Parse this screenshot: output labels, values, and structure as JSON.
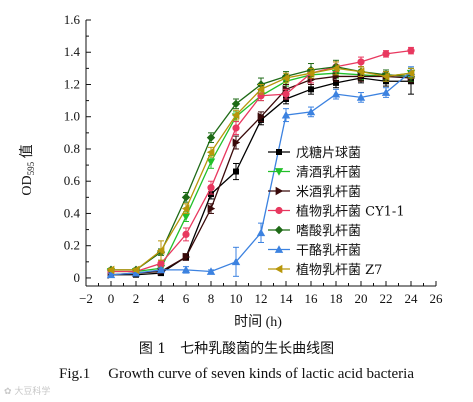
{
  "chart_data": {
    "type": "line",
    "title": "",
    "xlabel": "时间 (h)",
    "ylabel_main": "OD",
    "ylabel_sub": "595",
    "ylabel_suffix": " 值",
    "xlim": [
      -2,
      26
    ],
    "ylim": [
      -0.05,
      1.6
    ],
    "xticks": [
      -2,
      0,
      2,
      4,
      6,
      8,
      10,
      12,
      14,
      16,
      18,
      20,
      22,
      24,
      26
    ],
    "yticks": [
      0,
      0.2,
      0.4,
      0.6,
      0.8,
      1.0,
      1.2,
      1.4,
      1.6
    ],
    "ytick_labels": [
      "0",
      "0.2",
      "0.4",
      "0.6",
      "0.8",
      "1.0",
      "1.2",
      "1.4",
      "1.6"
    ],
    "grid": false,
    "legend_position": "right",
    "x": [
      0,
      2,
      4,
      6,
      8,
      10,
      12,
      14,
      16,
      18,
      20,
      22,
      24
    ],
    "series": [
      {
        "name": "戊糖片球菌",
        "color": "#000000",
        "marker": "square",
        "values": [
          0.02,
          0.02,
          0.03,
          0.13,
          0.52,
          0.66,
          0.98,
          1.11,
          1.17,
          1.21,
          1.24,
          1.22,
          1.22
        ],
        "errors": [
          0.01,
          0.01,
          0.01,
          0.02,
          0.03,
          0.05,
          0.03,
          0.03,
          0.03,
          0.03,
          0.03,
          0.03,
          0.08
        ]
      },
      {
        "name": "清酒乳杆菌",
        "color": "#22c02a",
        "marker": "triangle-down",
        "values": [
          0.04,
          0.04,
          0.06,
          0.38,
          0.72,
          1.0,
          1.13,
          1.22,
          1.26,
          1.27,
          1.26,
          1.25,
          1.27
        ],
        "errors": [
          0.01,
          0.01,
          0.02,
          0.03,
          0.04,
          0.03,
          0.03,
          0.03,
          0.03,
          0.03,
          0.03,
          0.03,
          0.03
        ]
      },
      {
        "name": "米酒乳杆菌",
        "color": "#3a0a0a",
        "marker": "triangle-right",
        "values": [
          0.02,
          0.03,
          0.04,
          0.13,
          0.43,
          0.84,
          1.0,
          1.17,
          1.23,
          1.25,
          1.25,
          1.25,
          1.24
        ],
        "errors": [
          0.01,
          0.01,
          0.01,
          0.02,
          0.03,
          0.04,
          0.03,
          0.03,
          0.03,
          0.03,
          0.03,
          0.03,
          0.03
        ]
      },
      {
        "name": "植物乳杆菌 CY1-1",
        "color": "#e8385f",
        "marker": "circle",
        "values": [
          0.04,
          0.04,
          0.09,
          0.27,
          0.56,
          0.93,
          1.13,
          1.14,
          1.27,
          1.31,
          1.34,
          1.39,
          1.41
        ],
        "errors": [
          0.01,
          0.01,
          0.02,
          0.04,
          0.04,
          0.04,
          0.03,
          0.03,
          0.06,
          0.03,
          0.03,
          0.02,
          0.02
        ]
      },
      {
        "name": "嗜酸乳杆菌",
        "color": "#1e6a16",
        "marker": "diamond",
        "values": [
          0.05,
          0.05,
          0.16,
          0.5,
          0.87,
          1.08,
          1.2,
          1.25,
          1.29,
          1.31,
          1.28,
          1.26,
          1.25
        ],
        "errors": [
          0.01,
          0.01,
          0.02,
          0.03,
          0.03,
          0.03,
          0.04,
          0.03,
          0.04,
          0.04,
          0.03,
          0.03,
          0.03
        ]
      },
      {
        "name": "干酪乳杆菌",
        "color": "#3c82e0",
        "marker": "triangle-up",
        "values": [
          0.02,
          0.03,
          0.05,
          0.05,
          0.04,
          0.1,
          0.28,
          1.01,
          1.03,
          1.14,
          1.12,
          1.15,
          1.28
        ],
        "errors": [
          0.01,
          0.01,
          0.01,
          0.02,
          0.01,
          0.09,
          0.06,
          0.04,
          0.03,
          0.03,
          0.03,
          0.03,
          0.03
        ]
      },
      {
        "name": "植物乳杆菌 Z7",
        "color": "#b8960a",
        "marker": "triangle-left",
        "values": [
          0.05,
          0.05,
          0.17,
          0.43,
          0.78,
          1.01,
          1.17,
          1.24,
          1.27,
          1.3,
          1.28,
          1.25,
          1.27
        ],
        "errors": [
          0.01,
          0.01,
          0.06,
          0.03,
          0.03,
          0.03,
          0.03,
          0.03,
          0.03,
          0.04,
          0.03,
          0.03,
          0.03
        ]
      }
    ]
  },
  "caption": {
    "cn_number": "图 1",
    "cn_text": "七种乳酸菌的生长曲线图",
    "en_number": "Fig.1",
    "en_text": "Growth curve of seven kinds of lactic acid bacteria"
  },
  "watermark": "大豆科学"
}
